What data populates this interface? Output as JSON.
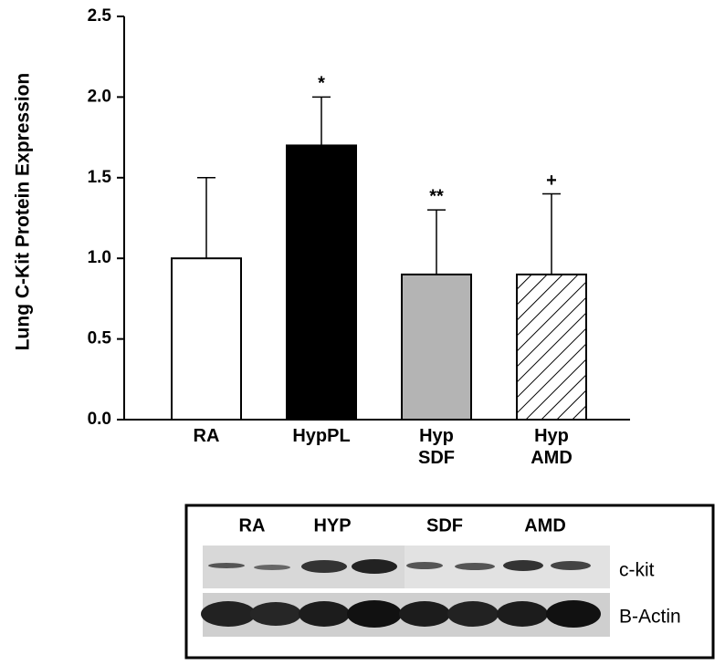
{
  "chart_data": {
    "type": "bar",
    "y_label": "Lung C-Kit Protein Expression",
    "categories": [
      "RA",
      "HypPL",
      "Hyp SDF",
      "Hyp AMD"
    ],
    "values": [
      1.0,
      1.7,
      0.9,
      0.9
    ],
    "errors": [
      0.5,
      0.3,
      0.4,
      0.5
    ],
    "annotations": [
      null,
      "*",
      "**",
      "+"
    ],
    "fills": [
      "#ffffff",
      "#000000",
      "#b4b4b4",
      "#ffffff"
    ],
    "hatch": [
      false,
      false,
      false,
      true
    ],
    "ylim": [
      0,
      2.5
    ],
    "yticks": [
      {
        "value": 0,
        "label": "0.0"
      },
      {
        "value": 0.5,
        "label": "0.5"
      },
      {
        "value": 1,
        "label": "1.0"
      },
      {
        "value": 1.5,
        "label": "1.5"
      },
      {
        "value": 2,
        "label": "2.0"
      },
      {
        "value": 2.5,
        "label": "2.5"
      }
    ]
  },
  "blot": {
    "lanes": [
      "RA",
      "HYP",
      "SDF",
      "AMD"
    ],
    "rows": [
      "c-kit",
      "B-Actin"
    ]
  }
}
